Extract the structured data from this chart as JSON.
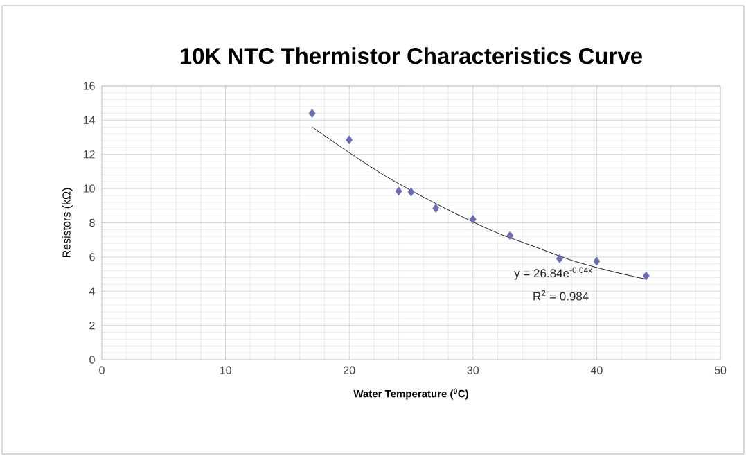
{
  "chart_data": {
    "type": "scatter",
    "title": "10K NTC Thermistor Characteristics Curve",
    "xlabel": "Water Temperature ($^{0}$C)",
    "ylabel": "Resistors (kΩ)",
    "x": [
      17,
      20,
      24,
      25,
      27,
      30,
      33,
      37,
      40,
      44
    ],
    "series": [
      {
        "color": "#6a6db5",
        "values": [
          14.4,
          12.85,
          9.85,
          9.8,
          8.85,
          8.2,
          7.25,
          5.9,
          5.75,
          4.9
        ]
      },
      {
        "type": "line",
        "color": "#000000",
        "marker": "none",
        "x": [
          17,
          20,
          23,
          26,
          29,
          32,
          35,
          38,
          41,
          44
        ],
        "values": [
          13.6,
          12.1,
          10.7,
          9.5,
          8.4,
          7.4,
          6.6,
          5.8,
          5.2,
          4.7
        ]
      }
    ],
    "annotations": [
      "y = 26.84e$^{-0.04x}$",
      "R$^{2}$ = 0.984"
    ],
    "xlim": [
      0,
      50
    ],
    "xticks": [
      0,
      10,
      20,
      30,
      40,
      50
    ],
    "ylim": [
      0,
      16
    ],
    "yticks": [
      0,
      2,
      4,
      6,
      8,
      10,
      12,
      14,
      16
    ],
    "grid": true,
    "marker": "diamond"
  }
}
